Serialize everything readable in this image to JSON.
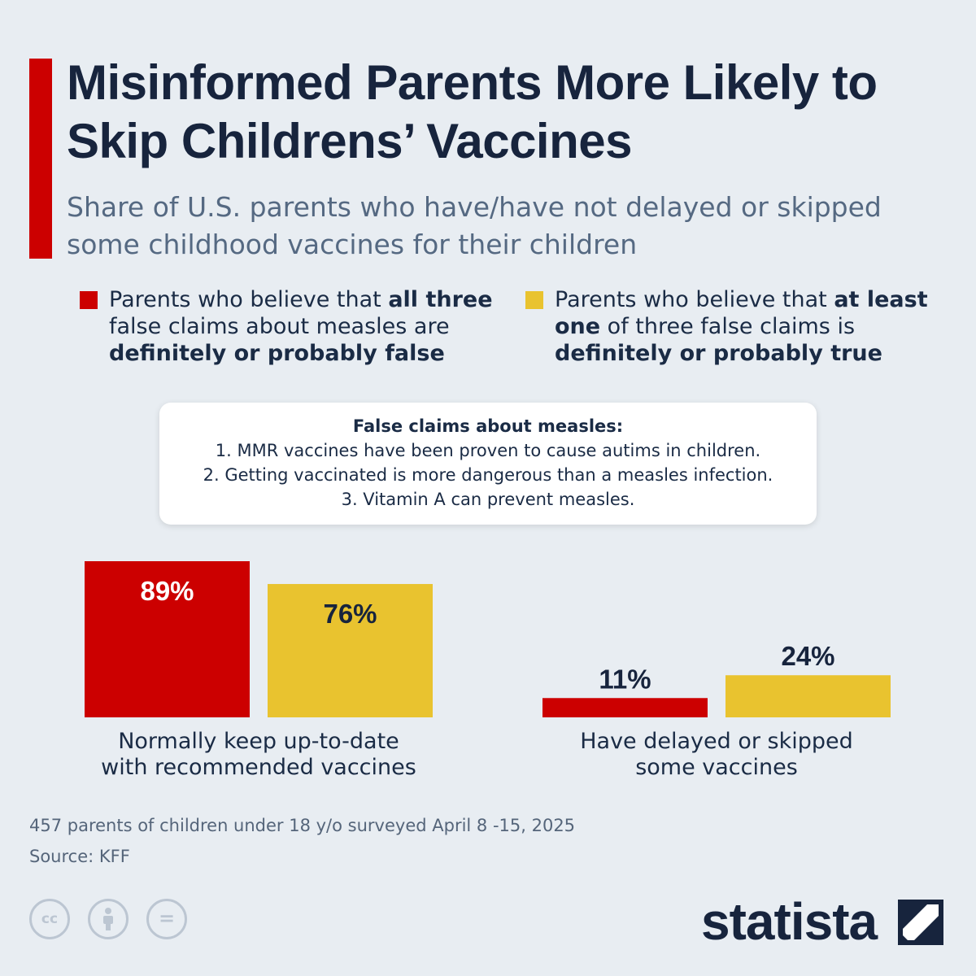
{
  "title": "Misinformed Parents More Likely to Skip Childrens’ Vaccines",
  "subtitle": "Share of U.S. parents who have/have not delayed or skipped some childhood vaccines for their children",
  "legend": [
    {
      "pre": "Parents who believe that ",
      "bold1": "all three",
      "mid": " false claims about measles are ",
      "bold2": "definitely or probably false",
      "color": "#cc0000"
    },
    {
      "pre": "Parents who believe that ",
      "bold1": "at least one",
      "mid": " of three false claims is ",
      "bold2": "definitely or probably true",
      "color": "#e9c32f"
    }
  ],
  "info_box": {
    "title": "False claims about measles:",
    "lines": [
      "1. MMR vaccines have been proven to cause autims in children.",
      "2. Getting vaccinated is more dangerous than a measles infection.",
      "3. Vitamin A can prevent measles."
    ]
  },
  "chart_data": {
    "type": "bar",
    "categories": [
      "Normally keep up-to-date with recommended vaccines",
      "Have delayed or skipped some vaccines"
    ],
    "category_lines": [
      [
        "Normally keep up-to-date",
        "with recommended vaccines"
      ],
      [
        "Have delayed or skipped",
        "some vaccines"
      ]
    ],
    "series": [
      {
        "name": "Parents who believe that all three false claims about measles are definitely or probably false",
        "values": [
          89,
          11
        ],
        "labels": [
          "89%",
          "11%"
        ],
        "color": "#cc0000"
      },
      {
        "name": "Parents who believe that at least one of three false claims is definitely or probably true",
        "values": [
          76,
          24
        ],
        "labels": [
          "76%",
          "24%"
        ],
        "color": "#e9c32f"
      }
    ],
    "title": "Share of U.S. parents who have/have not delayed or skipped some childhood vaccines for their children",
    "ylim": [
      0,
      100
    ],
    "grid": false,
    "legend_position": "top"
  },
  "footnote": "457 parents of children under 18 y/o surveyed April 8 -15, 2025",
  "source": "Source: KFF",
  "license_icons": [
    "creative-commons-icon",
    "attribution-icon",
    "no-derivatives-icon"
  ],
  "brand": "statista",
  "colors": {
    "accent": "#cc0000",
    "yellow": "#e9c32f",
    "navy": "#17243d",
    "background": "#e8edf2"
  }
}
